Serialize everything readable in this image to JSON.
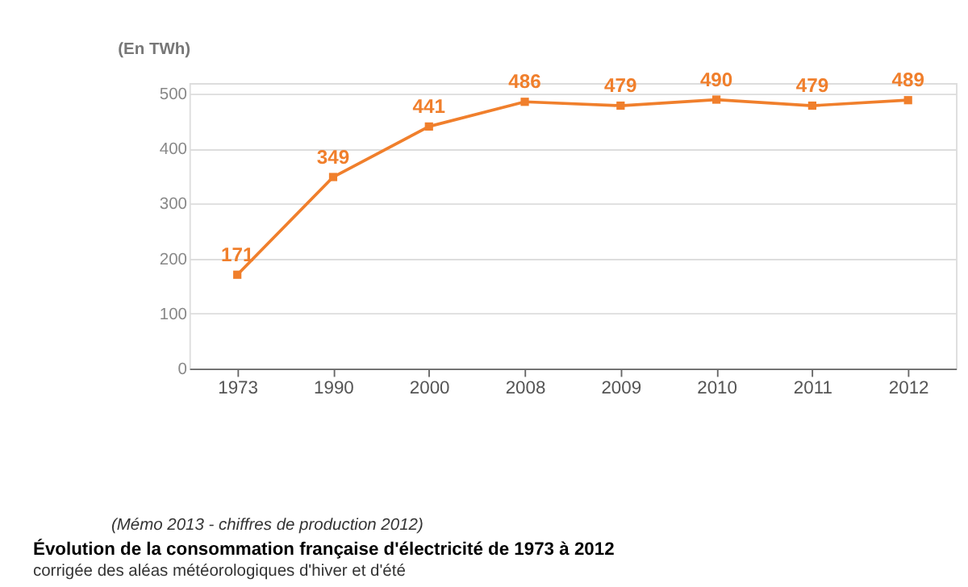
{
  "chart_data": {
    "type": "line",
    "title": "Évolution de la consommation française d'électricité de 1973 à 2012",
    "subtitle": "corrigée des aléas météorologiques d'hiver et d'été",
    "ylabel": "(En TWh)",
    "annotations": [
      "(Mémo 2013 - chiffres de production 2012)"
    ],
    "categories": [
      "1973",
      "1990",
      "2000",
      "2008",
      "2009",
      "2010",
      "2011",
      "2012"
    ],
    "series": [
      {
        "color": "#f07f2c",
        "values": [
          171,
          349,
          441,
          486,
          479,
          490,
          479,
          489
        ]
      }
    ],
    "ylim": [
      0,
      520
    ],
    "yticks": [
      0,
      100,
      200,
      300,
      400,
      500
    ],
    "grid": "y",
    "marker": "square",
    "data_labels": true
  }
}
